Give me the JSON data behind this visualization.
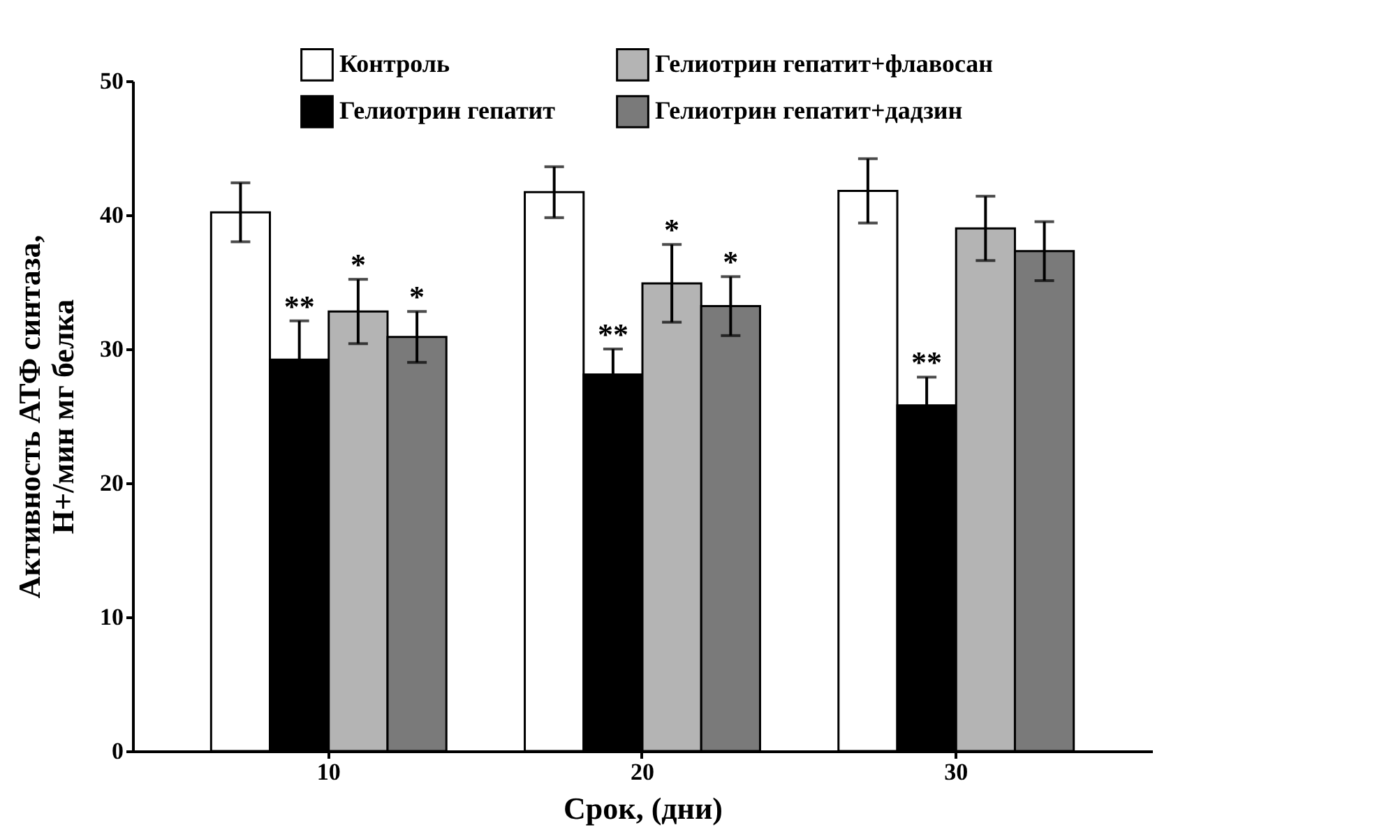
{
  "chart_data": {
    "type": "bar",
    "xlabel": "Срок, (дни)",
    "ylabel": "Активность АТФ синтаза, Н+/мин мг белка",
    "categories": [
      "10",
      "20",
      "30"
    ],
    "series": [
      {
        "name": "Контроль",
        "color": "#ffffff",
        "values": [
          40.2,
          41.7,
          41.8
        ],
        "errors": [
          2.2,
          1.9,
          2.4
        ]
      },
      {
        "name": "Гелиотрин гепатит",
        "color": "#000000",
        "values": [
          29.2,
          28.1,
          25.8
        ],
        "errors": [
          2.9,
          1.9,
          2.1
        ]
      },
      {
        "name": "Гелиотрин гепатит+флавосан",
        "color": "#b4b4b4",
        "values": [
          32.8,
          34.9,
          39.0
        ],
        "errors": [
          2.4,
          2.9,
          2.4
        ]
      },
      {
        "name": "Гелиотрин гепатит+дадзин",
        "color": "#7a7a7a",
        "values": [
          30.9,
          33.2,
          37.3
        ],
        "errors": [
          1.9,
          2.2,
          2.2
        ]
      }
    ],
    "ylim": [
      0,
      50
    ],
    "yticks": [
      0,
      10,
      20,
      30,
      40,
      50
    ],
    "grid": false,
    "legend": "top",
    "annotations": [
      {
        "text": "**",
        "x": "10",
        "y": 29.2
      },
      {
        "text": "*",
        "x": "10",
        "y": 32.8
      },
      {
        "text": "*",
        "x": "10",
        "y": 30.9
      },
      {
        "text": "**",
        "x": "20",
        "y": 28.1
      },
      {
        "text": "*",
        "x": "20",
        "y": 34.9
      },
      {
        "text": "*",
        "x": "20",
        "y": 33.2
      },
      {
        "text": "**",
        "x": "30",
        "y": 25.8
      }
    ]
  }
}
